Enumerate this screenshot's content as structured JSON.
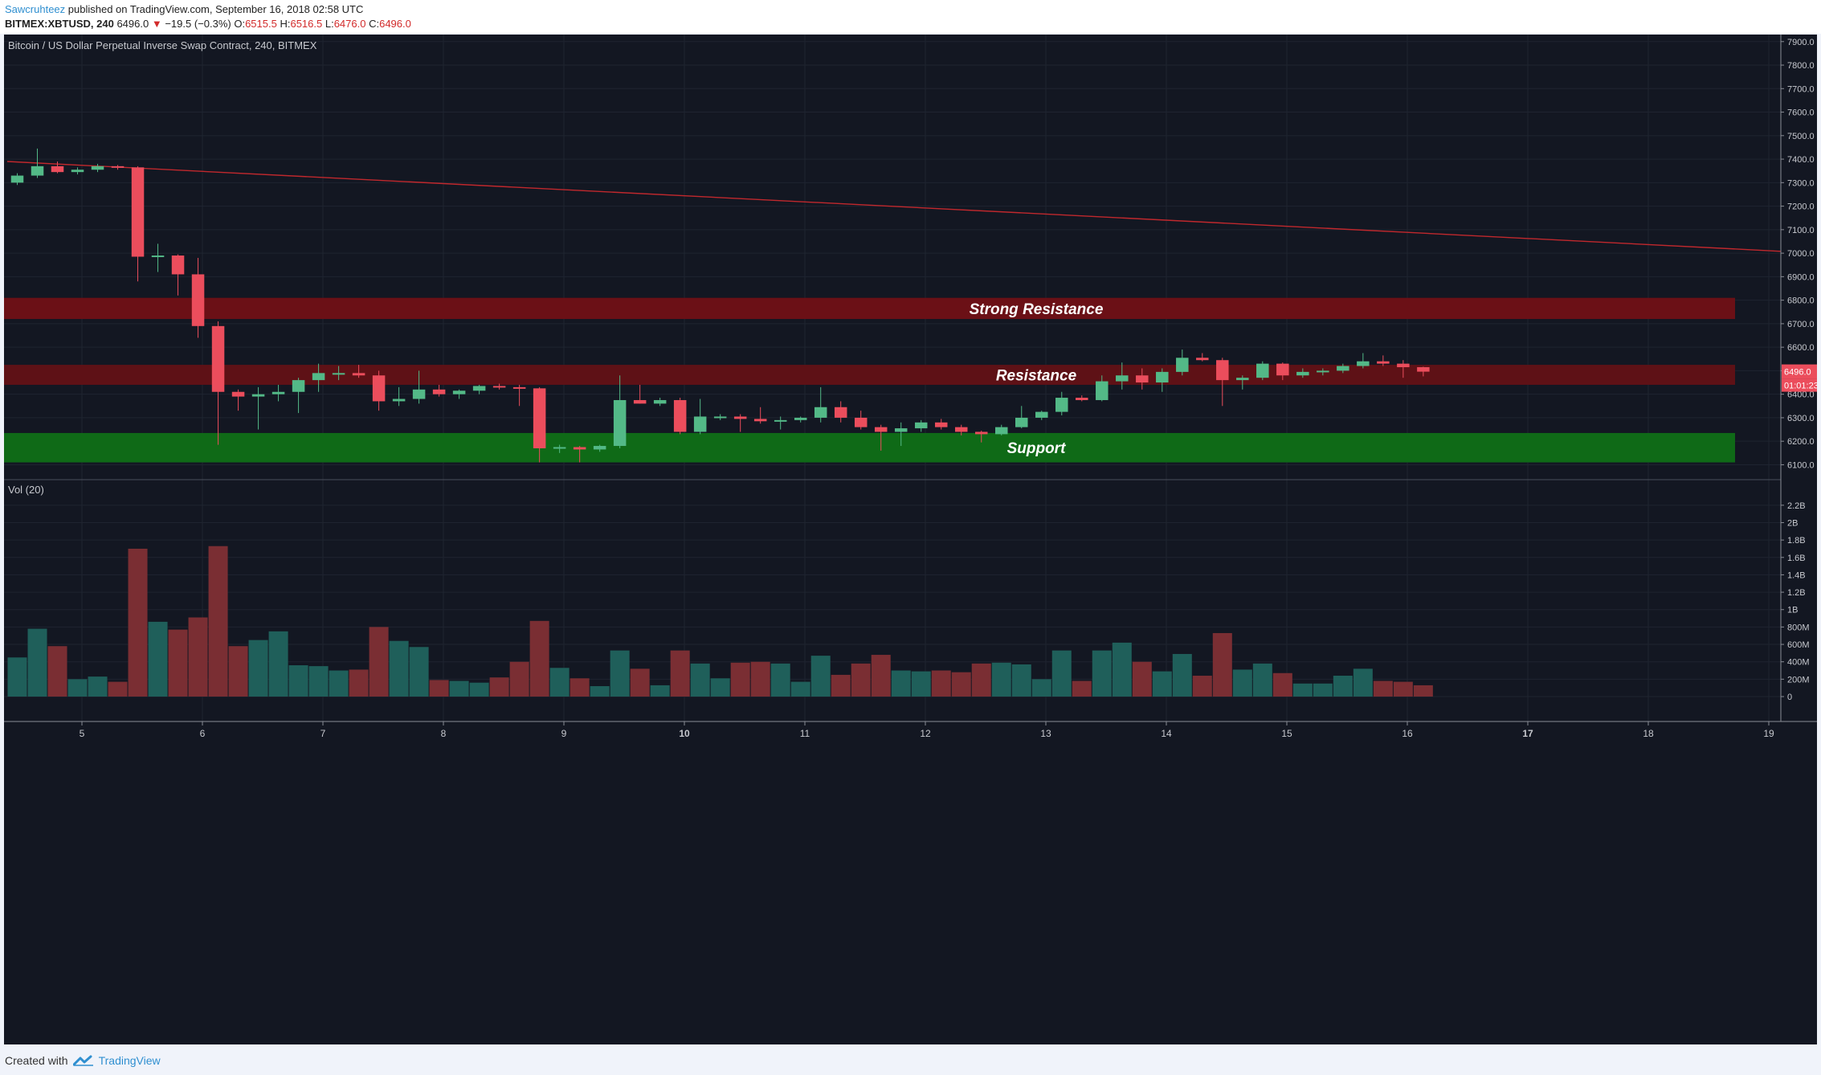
{
  "header": {
    "author": "Sawcruhteez",
    "published_text": "published on TradingView.com, September 16, 2018 02:58 UTC",
    "symbol": "BITMEX:XBTUSD, 240",
    "last": "6496.0",
    "change_arrow": "▼",
    "change": "−19.5 (−0.3%)",
    "o_label": "O:",
    "o_value": "6515.5",
    "h_label": "H:",
    "h_value": "6516.5",
    "l_label": "L:",
    "l_value": "6476.0",
    "c_label": "C:",
    "c_value": "6496.0"
  },
  "footer": {
    "created_with": "Created with",
    "brand": "TradingView"
  },
  "colors": {
    "background": "#131722",
    "grid": "#1f2430",
    "up": "#53b987",
    "down": "#eb4d5c",
    "vol_up": "#1f5f5a",
    "vol_down": "#7a2e33",
    "trendline": "#c0282d",
    "strong_resistance": "#6b1016",
    "resistance": "#5e1116",
    "support": "#0f6a17",
    "axis_text": "#c7c9cf",
    "price_tag": "#eb4d5c"
  },
  "chart_data": {
    "type": "candlestick",
    "title": "Bitcoin / US Dollar Perpetual Inverse Swap Contract, 240, BITMEX",
    "volume_label": "Vol (20)",
    "x_ticks": [
      {
        "label": "5",
        "day": 5
      },
      {
        "label": "6",
        "day": 6
      },
      {
        "label": "7",
        "day": 7
      },
      {
        "label": "8",
        "day": 8
      },
      {
        "label": "9",
        "day": 9
      },
      {
        "label": "10",
        "day": 10,
        "bold": true
      },
      {
        "label": "11",
        "day": 11
      },
      {
        "label": "12",
        "day": 12
      },
      {
        "label": "13",
        "day": 13
      },
      {
        "label": "14",
        "day": 14
      },
      {
        "label": "15",
        "day": 15
      },
      {
        "label": "16",
        "day": 16
      },
      {
        "label": "17",
        "day": 17,
        "bold": true
      },
      {
        "label": "18",
        "day": 18
      },
      {
        "label": "19",
        "day": 19
      }
    ],
    "price_axis": {
      "ylim": [
        6040,
        7930
      ],
      "ticks": [
        "6100.0",
        "6200.0",
        "6300.0",
        "6400.0",
        "6500.0",
        "6600.0",
        "6700.0",
        "6800.0",
        "6900.0",
        "7000.0",
        "7100.0",
        "7200.0",
        "7300.0",
        "7400.0",
        "7500.0",
        "7600.0",
        "7700.0",
        "7800.0",
        "7900.0"
      ]
    },
    "volume_axis": {
      "ylim": [
        0,
        2.3
      ],
      "ticks": [
        {
          "v": 0,
          "label": "0"
        },
        {
          "v": 0.2,
          "label": "200M"
        },
        {
          "v": 0.4,
          "label": "400M"
        },
        {
          "v": 0.6,
          "label": "600M"
        },
        {
          "v": 0.8,
          "label": "800M"
        },
        {
          "v": 1.0,
          "label": "1B"
        },
        {
          "v": 1.2,
          "label": "1.2B"
        },
        {
          "v": 1.4,
          "label": "1.4B"
        },
        {
          "v": 1.6,
          "label": "1.6B"
        },
        {
          "v": 1.8,
          "label": "1.8B"
        },
        {
          "v": 2.0,
          "label": "2B"
        },
        {
          "v": 2.2,
          "label": "2.2B"
        }
      ]
    },
    "last_price_label": "6496.0",
    "countdown_label": "01:01:23",
    "zones": [
      {
        "name": "Strong Resistance",
        "from": 6720,
        "to": 6810,
        "color": "#6b1016",
        "day_end": 18.72
      },
      {
        "name": "Resistance",
        "from": 6440,
        "to": 6525,
        "color": "#5e1116",
        "day_end": 18.72
      },
      {
        "name": "Support",
        "from": 6110,
        "to": 6235,
        "color": "#0f6a17",
        "day_end": 18.72
      }
    ],
    "trendline": {
      "day_start": 4.38,
      "price_start": 7390,
      "day_end": 19.1,
      "price_end": 7008
    },
    "x_start_day": 4.38,
    "bar_days": 0.1667,
    "candles": [
      {
        "o": 7300,
        "h": 7340,
        "l": 7290,
        "c": 7330,
        "v": 0.45
      },
      {
        "o": 7330,
        "h": 7445,
        "l": 7320,
        "c": 7370,
        "v": 0.78
      },
      {
        "o": 7370,
        "h": 7390,
        "l": 7340,
        "c": 7345,
        "v": 0.58
      },
      {
        "o": 7345,
        "h": 7365,
        "l": 7335,
        "c": 7355,
        "v": 0.2
      },
      {
        "o": 7355,
        "h": 7380,
        "l": 7345,
        "c": 7370,
        "v": 0.23
      },
      {
        "o": 7370,
        "h": 7375,
        "l": 7355,
        "c": 7365,
        "v": 0.17
      },
      {
        "o": 7365,
        "h": 7370,
        "l": 6880,
        "c": 6985,
        "v": 1.7
      },
      {
        "o": 6985,
        "h": 7040,
        "l": 6920,
        "c": 6990,
        "v": 0.86
      },
      {
        "o": 6990,
        "h": 6995,
        "l": 6820,
        "c": 6910,
        "v": 0.77
      },
      {
        "o": 6910,
        "h": 6980,
        "l": 6640,
        "c": 6690,
        "v": 0.91
      },
      {
        "o": 6690,
        "h": 6710,
        "l": 6185,
        "c": 6410,
        "v": 1.73
      },
      {
        "o": 6410,
        "h": 6420,
        "l": 6330,
        "c": 6390,
        "v": 0.58
      },
      {
        "o": 6390,
        "h": 6430,
        "l": 6250,
        "c": 6400,
        "v": 0.65
      },
      {
        "o": 6400,
        "h": 6440,
        "l": 6370,
        "c": 6410,
        "v": 0.75
      },
      {
        "o": 6410,
        "h": 6470,
        "l": 6320,
        "c": 6460,
        "v": 0.36
      },
      {
        "o": 6460,
        "h": 6530,
        "l": 6410,
        "c": 6490,
        "v": 0.35
      },
      {
        "o": 6490,
        "h": 6520,
        "l": 6460,
        "c": 6490,
        "v": 0.3
      },
      {
        "o": 6490,
        "h": 6525,
        "l": 6470,
        "c": 6480,
        "v": 0.31
      },
      {
        "o": 6480,
        "h": 6500,
        "l": 6330,
        "c": 6370,
        "v": 0.8
      },
      {
        "o": 6370,
        "h": 6430,
        "l": 6350,
        "c": 6380,
        "v": 0.64
      },
      {
        "o": 6380,
        "h": 6500,
        "l": 6360,
        "c": 6420,
        "v": 0.57
      },
      {
        "o": 6420,
        "h": 6440,
        "l": 6390,
        "c": 6400,
        "v": 0.19
      },
      {
        "o": 6400,
        "h": 6420,
        "l": 6380,
        "c": 6415,
        "v": 0.18
      },
      {
        "o": 6415,
        "h": 6440,
        "l": 6400,
        "c": 6435,
        "v": 0.16
      },
      {
        "o": 6435,
        "h": 6445,
        "l": 6420,
        "c": 6430,
        "v": 0.22
      },
      {
        "o": 6430,
        "h": 6440,
        "l": 6350,
        "c": 6425,
        "v": 0.4
      },
      {
        "o": 6425,
        "h": 6430,
        "l": 6110,
        "c": 6170,
        "v": 0.87
      },
      {
        "o": 6170,
        "h": 6185,
        "l": 6150,
        "c": 6175,
        "v": 0.33
      },
      {
        "o": 6175,
        "h": 6180,
        "l": 6110,
        "c": 6165,
        "v": 0.21
      },
      {
        "o": 6165,
        "h": 6185,
        "l": 6155,
        "c": 6180,
        "v": 0.12
      },
      {
        "o": 6180,
        "h": 6480,
        "l": 6170,
        "c": 6375,
        "v": 0.53
      },
      {
        "o": 6375,
        "h": 6440,
        "l": 6360,
        "c": 6360,
        "v": 0.32
      },
      {
        "o": 6360,
        "h": 6385,
        "l": 6350,
        "c": 6375,
        "v": 0.13
      },
      {
        "o": 6375,
        "h": 6385,
        "l": 6230,
        "c": 6240,
        "v": 0.53
      },
      {
        "o": 6240,
        "h": 6380,
        "l": 6230,
        "c": 6305,
        "v": 0.38
      },
      {
        "o": 6305,
        "h": 6315,
        "l": 6290,
        "c": 6305,
        "v": 0.21
      },
      {
        "o": 6305,
        "h": 6315,
        "l": 6240,
        "c": 6295,
        "v": 0.39
      },
      {
        "o": 6295,
        "h": 6345,
        "l": 6275,
        "c": 6285,
        "v": 0.4
      },
      {
        "o": 6285,
        "h": 6305,
        "l": 6250,
        "c": 6290,
        "v": 0.38
      },
      {
        "o": 6290,
        "h": 6305,
        "l": 6280,
        "c": 6300,
        "v": 0.17
      },
      {
        "o": 6300,
        "h": 6430,
        "l": 6280,
        "c": 6345,
        "v": 0.47
      },
      {
        "o": 6345,
        "h": 6370,
        "l": 6280,
        "c": 6300,
        "v": 0.25
      },
      {
        "o": 6300,
        "h": 6330,
        "l": 6250,
        "c": 6260,
        "v": 0.38
      },
      {
        "o": 6260,
        "h": 6270,
        "l": 6160,
        "c": 6240,
        "v": 0.48
      },
      {
        "o": 6240,
        "h": 6280,
        "l": 6180,
        "c": 6255,
        "v": 0.3
      },
      {
        "o": 6255,
        "h": 6290,
        "l": 6240,
        "c": 6280,
        "v": 0.29
      },
      {
        "o": 6280,
        "h": 6295,
        "l": 6250,
        "c": 6260,
        "v": 0.3
      },
      {
        "o": 6260,
        "h": 6270,
        "l": 6225,
        "c": 6240,
        "v": 0.28
      },
      {
        "o": 6240,
        "h": 6245,
        "l": 6195,
        "c": 6230,
        "v": 0.38
      },
      {
        "o": 6230,
        "h": 6270,
        "l": 6225,
        "c": 6260,
        "v": 0.39
      },
      {
        "o": 6260,
        "h": 6350,
        "l": 6255,
        "c": 6300,
        "v": 0.37
      },
      {
        "o": 6300,
        "h": 6330,
        "l": 6290,
        "c": 6325,
        "v": 0.2
      },
      {
        "o": 6325,
        "h": 6410,
        "l": 6310,
        "c": 6385,
        "v": 0.53
      },
      {
        "o": 6385,
        "h": 6395,
        "l": 6370,
        "c": 6375,
        "v": 0.18
      },
      {
        "o": 6375,
        "h": 6480,
        "l": 6370,
        "c": 6455,
        "v": 0.53
      },
      {
        "o": 6455,
        "h": 6535,
        "l": 6420,
        "c": 6480,
        "v": 0.62
      },
      {
        "o": 6480,
        "h": 6510,
        "l": 6420,
        "c": 6450,
        "v": 0.4
      },
      {
        "o": 6450,
        "h": 6510,
        "l": 6410,
        "c": 6495,
        "v": 0.29
      },
      {
        "o": 6495,
        "h": 6590,
        "l": 6480,
        "c": 6555,
        "v": 0.49
      },
      {
        "o": 6555,
        "h": 6575,
        "l": 6540,
        "c": 6545,
        "v": 0.24
      },
      {
        "o": 6545,
        "h": 6555,
        "l": 6350,
        "c": 6460,
        "v": 0.73
      },
      {
        "o": 6460,
        "h": 6480,
        "l": 6420,
        "c": 6470,
        "v": 0.31
      },
      {
        "o": 6470,
        "h": 6540,
        "l": 6460,
        "c": 6530,
        "v": 0.38
      },
      {
        "o": 6530,
        "h": 6535,
        "l": 6460,
        "c": 6480,
        "v": 0.27
      },
      {
        "o": 6480,
        "h": 6510,
        "l": 6470,
        "c": 6495,
        "v": 0.15
      },
      {
        "o": 6495,
        "h": 6510,
        "l": 6480,
        "c": 6500,
        "v": 0.15
      },
      {
        "o": 6500,
        "h": 6530,
        "l": 6490,
        "c": 6520,
        "v": 0.24
      },
      {
        "o": 6520,
        "h": 6575,
        "l": 6510,
        "c": 6540,
        "v": 0.32
      },
      {
        "o": 6540,
        "h": 6565,
        "l": 6520,
        "c": 6530,
        "v": 0.18
      },
      {
        "o": 6530,
        "h": 6545,
        "l": 6470,
        "c": 6515,
        "v": 0.17
      },
      {
        "o": 6515,
        "h": 6517,
        "l": 6476,
        "c": 6496,
        "v": 0.13
      }
    ]
  }
}
